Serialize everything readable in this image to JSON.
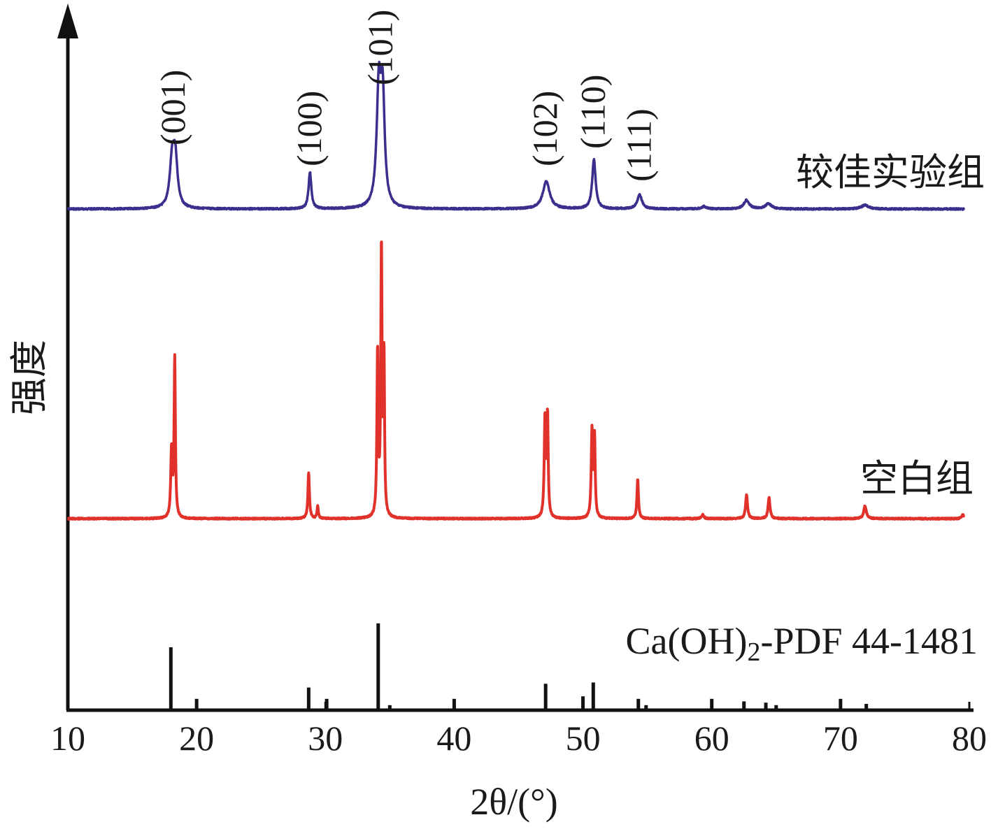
{
  "chart_data": {
    "type": "line",
    "title": "",
    "xlabel": "2θ/(°)",
    "ylabel": "强度",
    "xlim": [
      10,
      80
    ],
    "xticks": [
      10,
      20,
      30,
      40,
      50,
      60,
      70,
      80
    ],
    "grid": false,
    "colors": {
      "optimal": "#3a2f8c",
      "blank": "#e0322b",
      "reference": "#111111",
      "axis": "#111111"
    },
    "series": [
      {
        "name": "较佳实验组",
        "baseline": 0,
        "peaks": [
          {
            "x": 18.1,
            "y": 37,
            "w": 0.22
          },
          {
            "x": 18.35,
            "y": 36,
            "w": 0.2
          },
          {
            "x": 28.8,
            "y": 29,
            "w": 0.13
          },
          {
            "x": 34.15,
            "y": 93,
            "w": 0.2
          },
          {
            "x": 34.45,
            "y": 82,
            "w": 0.18
          },
          {
            "x": 47.15,
            "y": 22,
            "w": 0.32
          },
          {
            "x": 50.85,
            "y": 39,
            "w": 0.16
          },
          {
            "x": 54.4,
            "y": 11,
            "w": 0.22
          },
          {
            "x": 59.4,
            "y": 2,
            "w": 0.2
          },
          {
            "x": 62.7,
            "y": 7,
            "w": 0.25
          },
          {
            "x": 64.4,
            "y": 4,
            "w": 0.3
          },
          {
            "x": 71.9,
            "y": 3,
            "w": 0.35
          }
        ]
      },
      {
        "name": "空白组",
        "baseline": 0,
        "peaks": [
          {
            "x": 18.05,
            "y": 48,
            "w": 0.07
          },
          {
            "x": 18.3,
            "y": 114,
            "w": 0.06
          },
          {
            "x": 28.7,
            "y": 33,
            "w": 0.07
          },
          {
            "x": 29.4,
            "y": 9,
            "w": 0.06
          },
          {
            "x": 34.05,
            "y": 117,
            "w": 0.06
          },
          {
            "x": 34.35,
            "y": 192,
            "w": 0.06
          },
          {
            "x": 34.55,
            "y": 111,
            "w": 0.05
          },
          {
            "x": 47.05,
            "y": 71,
            "w": 0.07
          },
          {
            "x": 47.25,
            "y": 72,
            "w": 0.06
          },
          {
            "x": 50.7,
            "y": 62,
            "w": 0.07
          },
          {
            "x": 50.9,
            "y": 56,
            "w": 0.06
          },
          {
            "x": 54.25,
            "y": 28,
            "w": 0.07
          },
          {
            "x": 59.3,
            "y": 3,
            "w": 0.1
          },
          {
            "x": 62.7,
            "y": 17,
            "w": 0.09
          },
          {
            "x": 64.45,
            "y": 15,
            "w": 0.09
          },
          {
            "x": 71.9,
            "y": 9,
            "w": 0.12
          },
          {
            "x": 79.5,
            "y": 3,
            "w": 0.1
          }
        ]
      }
    ],
    "reference": {
      "label": "Ca(OH)₂-PDF 44-1481",
      "label_parts": {
        "pre": "Ca(OH)",
        "sub": "2",
        "post": "-PDF 44-1481"
      },
      "sticks": [
        {
          "x": 18.0,
          "y": 50
        },
        {
          "x": 20.0,
          "y": 9
        },
        {
          "x": 28.7,
          "y": 18
        },
        {
          "x": 30.1,
          "y": 9
        },
        {
          "x": 34.1,
          "y": 69
        },
        {
          "x": 35.0,
          "y": 4
        },
        {
          "x": 40.0,
          "y": 9
        },
        {
          "x": 47.1,
          "y": 21
        },
        {
          "x": 50.0,
          "y": 11
        },
        {
          "x": 50.8,
          "y": 22
        },
        {
          "x": 54.3,
          "y": 9
        },
        {
          "x": 54.9,
          "y": 4
        },
        {
          "x": 60.0,
          "y": 9
        },
        {
          "x": 62.5,
          "y": 7
        },
        {
          "x": 64.2,
          "y": 6
        },
        {
          "x": 65.0,
          "y": 4
        },
        {
          "x": 70.0,
          "y": 9
        },
        {
          "x": 72.0,
          "y": 5
        }
      ]
    },
    "annotations": [
      {
        "text": "(001)",
        "x": 18.2
      },
      {
        "text": "(100)",
        "x": 28.8
      },
      {
        "text": "(101)",
        "x": 34.3
      },
      {
        "text": "(102)",
        "x": 47.1
      },
      {
        "text": "(110)",
        "x": 50.8
      },
      {
        "text": "(111)",
        "x": 54.4
      }
    ]
  }
}
